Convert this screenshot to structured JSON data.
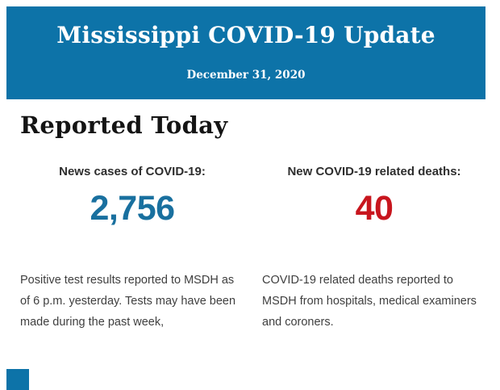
{
  "header": {
    "title": "Mississippi COVID-19 Update",
    "date": "December 31, 2020",
    "background_color": "#0d73a8",
    "text_color": "#ffffff"
  },
  "main": {
    "heading": "Reported Today",
    "stats": [
      {
        "label": "News cases of COVID-19:",
        "value": "2,756",
        "value_color": "#19709f",
        "description": "Positive test results reported to MSDH as of 6 p.m. yesterday. Tests may have been made during the past week,"
      },
      {
        "label": "New COVID-19 related deaths:",
        "value": "40",
        "value_color": "#c8161e",
        "description": "COVID-19 related deaths reported to MSDH from hospitals, medical examiners and coroners."
      }
    ]
  },
  "footer": {
    "accent_color": "#0d73a8"
  }
}
